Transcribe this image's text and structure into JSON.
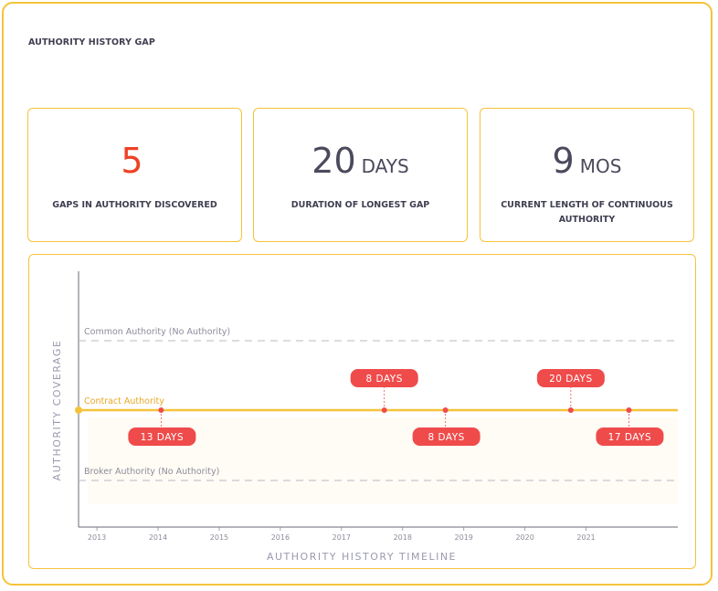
{
  "title": "AUTHORITY HISTORY GAP",
  "stats": [
    {
      "value": "5",
      "unit": "",
      "label": "GAPS IN AUTHORITY DISCOVERED",
      "color": "#ef4124"
    },
    {
      "value": "20",
      "unit": "DAYS",
      "label": "DURATION OF LONGEST GAP",
      "color": "#4a4a5c"
    },
    {
      "value": "9",
      "unit": "MOS",
      "label": "CURRENT LENGTH OF CONTINUOUS AUTHORITY",
      "color": "#4a4a5c"
    }
  ],
  "colors": {
    "accent": "#f5c33b",
    "gap_red": "#ef4b4b",
    "text_dark": "#3f3f51",
    "text_gray": "#9a9aae"
  },
  "chart_data": {
    "type": "timeline",
    "xlabel": "AUTHORITY HISTORY TIMELINE",
    "ylabel": "AUTHORITY COVERAGE",
    "xlim": [
      2012.7,
      2022.5
    ],
    "x_ticks": [
      "2013",
      "2014",
      "2015",
      "2016",
      "2017",
      "2018",
      "2019",
      "2020",
      "2021"
    ],
    "tracks": [
      {
        "name": "Common Authority (No Authority)",
        "style": "dashed"
      },
      {
        "name": "Contract Authority",
        "style": "solid"
      },
      {
        "name": "Broker Authority (No Authority)",
        "style": "dashed"
      }
    ],
    "active_track": "Contract Authority",
    "gaps": [
      {
        "date": 2014.05,
        "label": "13 DAYS",
        "label_position": "below"
      },
      {
        "date": 2017.7,
        "label": "8 DAYS",
        "label_position": "above"
      },
      {
        "date": 2018.7,
        "label": "8 DAYS",
        "label_position": "below"
      },
      {
        "date": 2020.75,
        "label": "20 DAYS",
        "label_position": "above"
      },
      {
        "date": 2021.7,
        "label": "17 DAYS",
        "label_position": "below"
      }
    ]
  }
}
